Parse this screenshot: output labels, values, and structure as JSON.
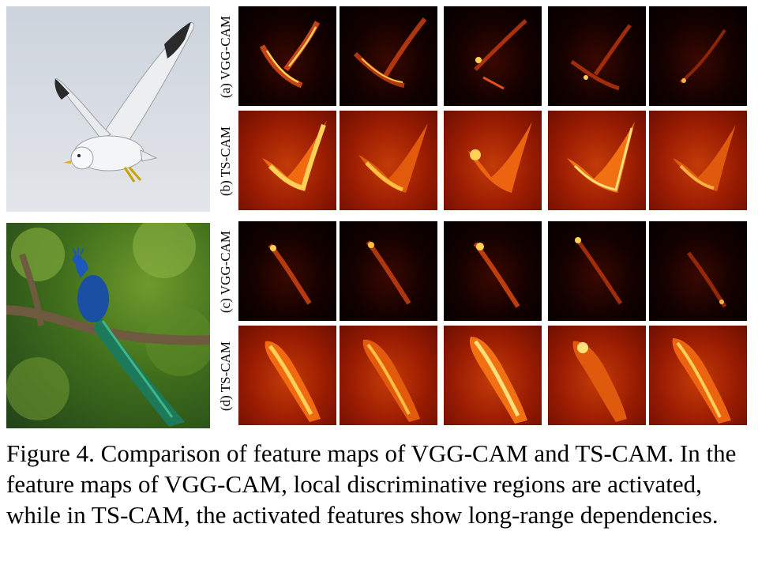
{
  "figure": {
    "row_labels": [
      "(a) VGG-CAM",
      "(b) TS-CAM",
      "(c) VGG-CAM",
      "(d) TS-CAM"
    ],
    "source_images": [
      "seagull-photo",
      "peacock-photo"
    ],
    "colors": {
      "map_dark": "#050000",
      "map_warm": "#9a1c02",
      "activation_hot": "#ffd257",
      "activation_mid": "#f06a10"
    }
  },
  "caption": {
    "text": "Figure 4. Comparison of feature maps of VGG-CAM and TS-CAM. In the feature maps of VGG-CAM, local discriminative regions are activated, while in TS-CAM, the activated features show long-range dependencies."
  }
}
